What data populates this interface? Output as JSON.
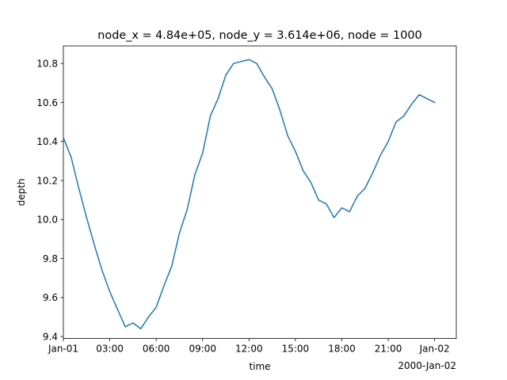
{
  "chart_data": {
    "type": "line",
    "title": "node_x = 4.84e+05, node_y = 3.614e+06, node = 1000",
    "xlabel": "time",
    "ylabel": "depth",
    "x_offset_label": "2000-Jan-02",
    "xlim": [
      "2000-01-01T00:00:00",
      "2000-01-02T01:24:00"
    ],
    "ylim": [
      9.39,
      10.89
    ],
    "x_ticks": [
      {
        "value": "2000-01-01T00:00:00",
        "label": "Jan-01"
      },
      {
        "value": "2000-01-01T03:00:00",
        "label": "03:00"
      },
      {
        "value": "2000-01-01T06:00:00",
        "label": "06:00"
      },
      {
        "value": "2000-01-01T09:00:00",
        "label": "09:00"
      },
      {
        "value": "2000-01-01T12:00:00",
        "label": "12:00"
      },
      {
        "value": "2000-01-01T15:00:00",
        "label": "15:00"
      },
      {
        "value": "2000-01-01T18:00:00",
        "label": "18:00"
      },
      {
        "value": "2000-01-01T21:00:00",
        "label": "21:00"
      },
      {
        "value": "2000-01-02T00:00:00",
        "label": "Jan-02"
      }
    ],
    "y_ticks": [
      {
        "value": 9.4,
        "label": "9.4"
      },
      {
        "value": 9.6,
        "label": "9.6"
      },
      {
        "value": 9.8,
        "label": "9.8"
      },
      {
        "value": 10.0,
        "label": "10.0"
      },
      {
        "value": 10.2,
        "label": "10.2"
      },
      {
        "value": 10.4,
        "label": "10.4"
      },
      {
        "value": 10.6,
        "label": "10.6"
      },
      {
        "value": 10.8,
        "label": "10.8"
      }
    ],
    "grid": false,
    "legend": "none",
    "series": [
      {
        "color": "#1f77b4",
        "x": [
          "2000-01-01T00:00:00",
          "2000-01-01T00:30:00",
          "2000-01-01T01:00:00",
          "2000-01-01T01:30:00",
          "2000-01-01T02:00:00",
          "2000-01-01T02:30:00",
          "2000-01-01T03:00:00",
          "2000-01-01T03:30:00",
          "2000-01-01T04:00:00",
          "2000-01-01T04:30:00",
          "2000-01-01T05:00:00",
          "2000-01-01T05:30:00",
          "2000-01-01T06:00:00",
          "2000-01-01T06:30:00",
          "2000-01-01T07:00:00",
          "2000-01-01T07:30:00",
          "2000-01-01T08:00:00",
          "2000-01-01T08:30:00",
          "2000-01-01T09:00:00",
          "2000-01-01T09:30:00",
          "2000-01-01T10:00:00",
          "2000-01-01T10:30:00",
          "2000-01-01T11:00:00",
          "2000-01-01T11:30:00",
          "2000-01-01T12:00:00",
          "2000-01-01T12:30:00",
          "2000-01-01T13:00:00",
          "2000-01-01T13:30:00",
          "2000-01-01T14:00:00",
          "2000-01-01T14:30:00",
          "2000-01-01T15:00:00",
          "2000-01-01T15:30:00",
          "2000-01-01T16:00:00",
          "2000-01-01T16:30:00",
          "2000-01-01T17:00:00",
          "2000-01-01T17:30:00",
          "2000-01-01T18:00:00",
          "2000-01-01T18:30:00",
          "2000-01-01T19:00:00",
          "2000-01-01T19:30:00",
          "2000-01-01T20:00:00",
          "2000-01-01T20:30:00",
          "2000-01-01T21:00:00",
          "2000-01-01T21:30:00",
          "2000-01-01T22:00:00",
          "2000-01-01T22:30:00",
          "2000-01-01T23:00:00",
          "2000-01-01T23:30:00",
          "2000-01-02T00:00:00"
        ],
        "y": [
          10.42,
          10.32,
          10.16,
          10.01,
          9.87,
          9.74,
          9.63,
          9.54,
          9.45,
          9.47,
          9.44,
          9.5,
          9.55,
          9.66,
          9.76,
          9.93,
          10.05,
          10.23,
          10.34,
          10.53,
          10.62,
          10.74,
          10.8,
          10.81,
          10.82,
          10.8,
          10.73,
          10.67,
          10.56,
          10.43,
          10.35,
          10.25,
          10.19,
          10.1,
          10.08,
          10.01,
          10.06,
          10.04,
          10.12,
          10.16,
          10.24,
          10.33,
          10.4,
          10.5,
          10.53,
          10.59,
          10.64,
          10.62,
          10.6
        ]
      }
    ]
  }
}
